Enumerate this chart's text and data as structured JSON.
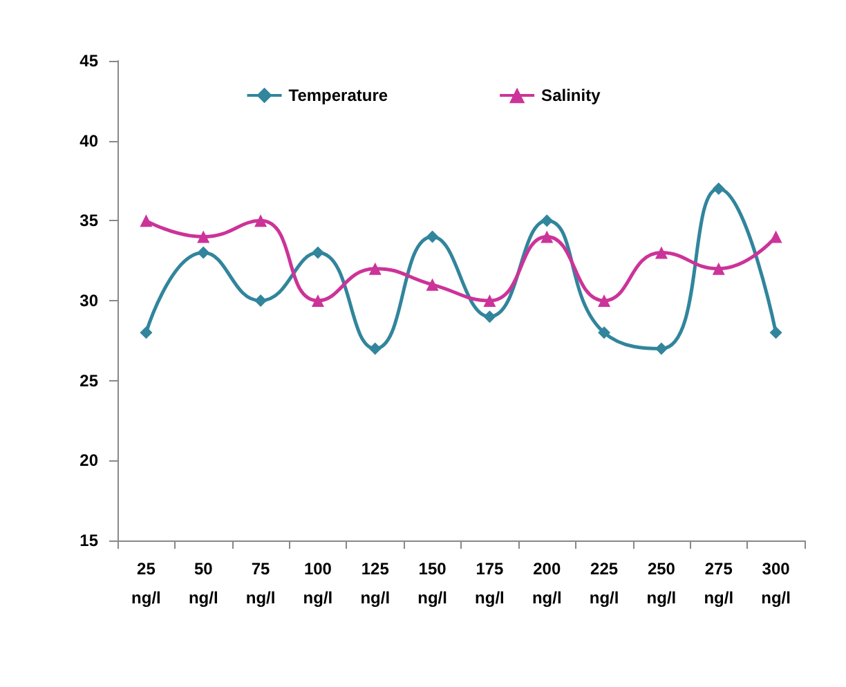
{
  "chart_data": {
    "type": "line",
    "categories": [
      "25 ng/l",
      "50 ng/l",
      "75 ng/l",
      "100 ng/l",
      "125 ng/l",
      "150 ng/l",
      "175 ng/l",
      "200 ng/l",
      "225 ng/l",
      "250 ng/l",
      "275 ng/l",
      "300 ng/l"
    ],
    "series": [
      {
        "name": "Temperature",
        "color": "#31859c",
        "marker": "diamond",
        "values": [
          28,
          33,
          30,
          33,
          27,
          34,
          29,
          35,
          28,
          27,
          37,
          28
        ]
      },
      {
        "name": "Salinity",
        "color": "#cc3399",
        "marker": "triangle",
        "values": [
          35,
          34,
          35,
          30,
          32,
          31,
          30,
          34,
          30,
          33,
          32,
          34
        ]
      }
    ],
    "ylim": [
      15,
      45
    ],
    "yticks": [
      15,
      20,
      25,
      30,
      35,
      40,
      45
    ],
    "grid": false,
    "legend": "top"
  }
}
